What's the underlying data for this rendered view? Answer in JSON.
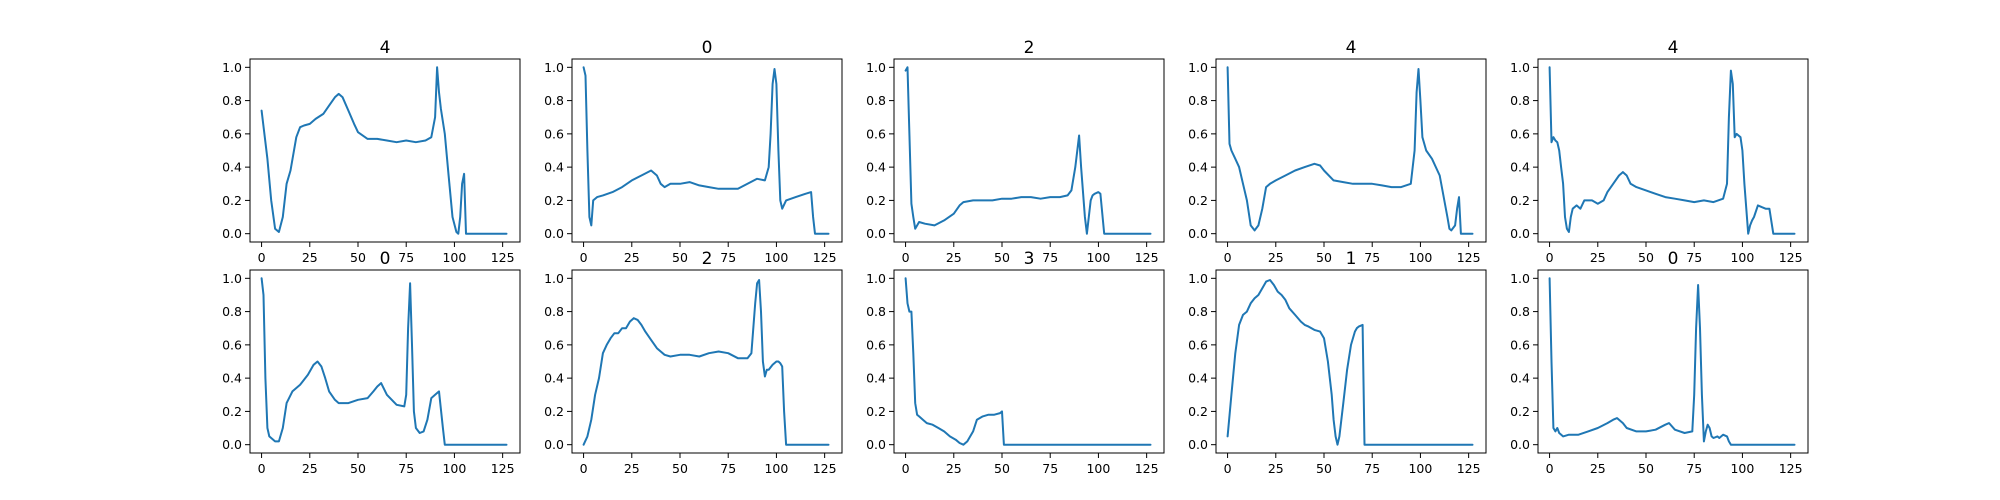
{
  "figure": {
    "rows": 2,
    "cols": 5
  },
  "colors": {
    "series": "#1f77b4",
    "axes": "#000000",
    "background": "#ffffff"
  },
  "chart_data": [
    {
      "type": "line",
      "title": "4",
      "xlim": [
        -6,
        134
      ],
      "ylim": [
        -0.05,
        1.05
      ],
      "xticks": [
        0,
        25,
        50,
        75,
        100,
        125
      ],
      "xtick_labels": [
        "0",
        "25",
        "50",
        "75",
        "100",
        "125"
      ],
      "yticks": [
        0,
        0.2,
        0.4,
        0.6,
        0.8,
        1.0
      ],
      "ytick_labels": [
        "0.0",
        "0.2",
        "0.4",
        "0.6",
        "0.8",
        "1.0"
      ],
      "x": [
        0,
        3,
        5,
        7,
        9,
        11,
        13,
        15,
        18,
        20,
        22,
        25,
        28,
        32,
        35,
        38,
        40,
        42,
        45,
        48,
        50,
        55,
        60,
        65,
        70,
        75,
        80,
        85,
        88,
        90,
        91,
        92,
        93,
        95,
        97,
        99,
        101,
        102,
        103,
        104,
        105,
        106,
        107,
        108,
        110,
        115,
        120,
        125,
        127
      ],
      "y": [
        0.74,
        0.45,
        0.2,
        0.03,
        0.01,
        0.1,
        0.3,
        0.38,
        0.58,
        0.64,
        0.65,
        0.66,
        0.69,
        0.72,
        0.77,
        0.82,
        0.84,
        0.82,
        0.74,
        0.66,
        0.61,
        0.57,
        0.57,
        0.56,
        0.55,
        0.56,
        0.55,
        0.56,
        0.58,
        0.7,
        1.0,
        0.85,
        0.75,
        0.6,
        0.35,
        0.1,
        0.01,
        0.0,
        0.1,
        0.3,
        0.36,
        0.0,
        0.0,
        0.0,
        0.0,
        0.0,
        0.0,
        0.0,
        0.0
      ]
    },
    {
      "type": "line",
      "title": "0",
      "xlim": [
        -6,
        134
      ],
      "ylim": [
        -0.05,
        1.05
      ],
      "xticks": [
        0,
        25,
        50,
        75,
        100,
        125
      ],
      "xtick_labels": [
        "0",
        "25",
        "50",
        "75",
        "100",
        "125"
      ],
      "yticks": [
        0,
        0.2,
        0.4,
        0.6,
        0.8,
        1.0
      ],
      "ytick_labels": [
        "0.0",
        "0.2",
        "0.4",
        "0.6",
        "0.8",
        "1.0"
      ],
      "x": [
        0,
        1,
        2,
        3,
        4,
        5,
        7,
        10,
        15,
        20,
        25,
        30,
        35,
        38,
        40,
        42,
        45,
        50,
        55,
        60,
        65,
        70,
        75,
        80,
        85,
        90,
        94,
        96,
        97,
        98,
        99,
        100,
        101,
        102,
        103,
        105,
        110,
        115,
        118,
        119,
        120,
        125,
        127
      ],
      "y": [
        1.0,
        0.95,
        0.5,
        0.1,
        0.05,
        0.2,
        0.22,
        0.23,
        0.25,
        0.28,
        0.32,
        0.35,
        0.38,
        0.35,
        0.3,
        0.28,
        0.3,
        0.3,
        0.31,
        0.29,
        0.28,
        0.27,
        0.27,
        0.27,
        0.3,
        0.33,
        0.32,
        0.4,
        0.6,
        0.9,
        0.99,
        0.9,
        0.5,
        0.2,
        0.15,
        0.2,
        0.22,
        0.24,
        0.25,
        0.1,
        0.0,
        0.0,
        0.0
      ]
    },
    {
      "type": "line",
      "title": "2",
      "xlim": [
        -6,
        134
      ],
      "ylim": [
        -0.05,
        1.05
      ],
      "xticks": [
        0,
        25,
        50,
        75,
        100,
        125
      ],
      "xtick_labels": [
        "0",
        "25",
        "50",
        "75",
        "100",
        "125"
      ],
      "yticks": [
        0,
        0.2,
        0.4,
        0.6,
        0.8,
        1.0
      ],
      "ytick_labels": [
        "0.0",
        "0.2",
        "0.4",
        "0.6",
        "0.8",
        "1.0"
      ],
      "x": [
        0,
        1,
        2,
        3,
        4,
        5,
        7,
        10,
        15,
        20,
        25,
        28,
        30,
        35,
        40,
        45,
        50,
        55,
        60,
        65,
        70,
        75,
        80,
        84,
        86,
        88,
        90,
        91,
        93,
        94,
        95,
        96,
        97,
        98,
        100,
        101,
        103,
        105,
        110,
        125,
        127
      ],
      "y": [
        0.98,
        1.0,
        0.6,
        0.18,
        0.1,
        0.03,
        0.07,
        0.06,
        0.05,
        0.08,
        0.12,
        0.17,
        0.19,
        0.2,
        0.2,
        0.2,
        0.21,
        0.21,
        0.22,
        0.22,
        0.21,
        0.22,
        0.22,
        0.23,
        0.26,
        0.4,
        0.59,
        0.4,
        0.1,
        0.0,
        0.1,
        0.2,
        0.23,
        0.24,
        0.25,
        0.24,
        0.0,
        0.0,
        0.0,
        0.0,
        0.0
      ]
    },
    {
      "type": "line",
      "title": "4",
      "xlim": [
        -6,
        134
      ],
      "ylim": [
        -0.05,
        1.05
      ],
      "xticks": [
        0,
        25,
        50,
        75,
        100,
        125
      ],
      "xtick_labels": [
        "0",
        "25",
        "50",
        "75",
        "100",
        "125"
      ],
      "yticks": [
        0,
        0.2,
        0.4,
        0.6,
        0.8,
        1.0
      ],
      "ytick_labels": [
        "0.0",
        "0.2",
        "0.4",
        "0.6",
        "0.8",
        "1.0"
      ],
      "x": [
        0,
        1,
        2,
        4,
        6,
        8,
        10,
        12,
        14,
        16,
        18,
        20,
        22,
        25,
        30,
        35,
        40,
        45,
        48,
        50,
        55,
        60,
        65,
        70,
        75,
        80,
        85,
        90,
        95,
        97,
        98,
        99,
        100,
        101,
        103,
        106,
        110,
        114,
        115,
        116,
        118,
        119,
        120,
        121,
        125,
        127
      ],
      "y": [
        1.0,
        0.54,
        0.5,
        0.45,
        0.4,
        0.3,
        0.2,
        0.05,
        0.02,
        0.05,
        0.15,
        0.28,
        0.3,
        0.32,
        0.35,
        0.38,
        0.4,
        0.42,
        0.41,
        0.38,
        0.32,
        0.31,
        0.3,
        0.3,
        0.3,
        0.29,
        0.28,
        0.28,
        0.3,
        0.5,
        0.85,
        0.99,
        0.8,
        0.58,
        0.5,
        0.45,
        0.35,
        0.1,
        0.03,
        0.02,
        0.05,
        0.15,
        0.22,
        0.0,
        0.0,
        0.0
      ]
    },
    {
      "type": "line",
      "title": "4",
      "xlim": [
        -6,
        134
      ],
      "ylim": [
        -0.05,
        1.05
      ],
      "xticks": [
        0,
        25,
        50,
        75,
        100,
        125
      ],
      "xtick_labels": [
        "0",
        "25",
        "50",
        "75",
        "100",
        "125"
      ],
      "yticks": [
        0,
        0.2,
        0.4,
        0.6,
        0.8,
        1.0
      ],
      "ytick_labels": [
        "0.0",
        "0.2",
        "0.4",
        "0.6",
        "0.8",
        "1.0"
      ],
      "x": [
        0,
        1,
        2,
        3,
        4,
        5,
        6,
        7,
        8,
        9,
        10,
        11,
        12,
        14,
        16,
        18,
        20,
        22,
        25,
        28,
        30,
        33,
        36,
        38,
        40,
        42,
        45,
        50,
        55,
        60,
        65,
        70,
        75,
        80,
        85,
        90,
        92,
        93,
        94,
        95,
        96,
        97,
        99,
        100,
        101,
        103,
        104,
        105,
        106,
        108,
        110,
        112,
        114,
        116,
        125,
        127
      ],
      "y": [
        1.0,
        0.55,
        0.58,
        0.56,
        0.55,
        0.5,
        0.4,
        0.3,
        0.1,
        0.03,
        0.01,
        0.1,
        0.15,
        0.17,
        0.15,
        0.2,
        0.2,
        0.2,
        0.18,
        0.2,
        0.25,
        0.3,
        0.35,
        0.37,
        0.35,
        0.3,
        0.28,
        0.26,
        0.24,
        0.22,
        0.21,
        0.2,
        0.19,
        0.2,
        0.19,
        0.21,
        0.3,
        0.7,
        0.98,
        0.9,
        0.58,
        0.6,
        0.58,
        0.5,
        0.3,
        0.0,
        0.05,
        0.08,
        0.1,
        0.17,
        0.16,
        0.15,
        0.15,
        0.0,
        0.0,
        0.0
      ]
    },
    {
      "type": "line",
      "title": "0",
      "xlim": [
        -6,
        134
      ],
      "ylim": [
        -0.05,
        1.05
      ],
      "xticks": [
        0,
        25,
        50,
        75,
        100,
        125
      ],
      "xtick_labels": [
        "0",
        "25",
        "50",
        "75",
        "100",
        "125"
      ],
      "yticks": [
        0,
        0.2,
        0.4,
        0.6,
        0.8,
        1.0
      ],
      "ytick_labels": [
        "0.0",
        "0.2",
        "0.4",
        "0.6",
        "0.8",
        "1.0"
      ],
      "x": [
        0,
        1,
        2,
        3,
        4,
        5,
        7,
        9,
        11,
        13,
        16,
        20,
        24,
        27,
        29,
        31,
        33,
        35,
        38,
        40,
        45,
        50,
        55,
        58,
        60,
        62,
        65,
        70,
        74,
        75,
        76,
        77,
        78,
        79,
        80,
        82,
        84,
        86,
        88,
        90,
        92,
        94,
        95,
        96,
        100,
        125,
        127
      ],
      "y": [
        1.0,
        0.9,
        0.4,
        0.1,
        0.05,
        0.04,
        0.02,
        0.02,
        0.1,
        0.25,
        0.32,
        0.36,
        0.42,
        0.48,
        0.5,
        0.47,
        0.4,
        0.32,
        0.27,
        0.25,
        0.25,
        0.27,
        0.28,
        0.32,
        0.35,
        0.37,
        0.3,
        0.24,
        0.23,
        0.3,
        0.7,
        0.97,
        0.6,
        0.2,
        0.1,
        0.07,
        0.08,
        0.15,
        0.28,
        0.3,
        0.32,
        0.1,
        0.0,
        0.0,
        0.0,
        0.0,
        0.0
      ]
    },
    {
      "type": "line",
      "title": "2",
      "xlim": [
        -6,
        134
      ],
      "ylim": [
        -0.05,
        1.05
      ],
      "xticks": [
        0,
        25,
        50,
        75,
        100,
        125
      ],
      "xtick_labels": [
        "0",
        "25",
        "50",
        "75",
        "100",
        "125"
      ],
      "yticks": [
        0,
        0.2,
        0.4,
        0.6,
        0.8,
        1.0
      ],
      "ytick_labels": [
        "0.0",
        "0.2",
        "0.4",
        "0.6",
        "0.8",
        "1.0"
      ],
      "x": [
        0,
        2,
        4,
        6,
        8,
        10,
        12,
        14,
        16,
        18,
        20,
        22,
        24,
        26,
        28,
        30,
        32,
        35,
        38,
        40,
        42,
        45,
        50,
        55,
        60,
        65,
        70,
        75,
        80,
        85,
        87,
        88,
        89,
        90,
        91,
        92,
        93,
        94,
        95,
        96,
        98,
        100,
        101,
        102,
        103,
        104,
        105,
        110,
        125,
        127
      ],
      "y": [
        0.0,
        0.05,
        0.15,
        0.3,
        0.4,
        0.55,
        0.6,
        0.64,
        0.67,
        0.67,
        0.7,
        0.7,
        0.74,
        0.76,
        0.75,
        0.72,
        0.68,
        0.63,
        0.58,
        0.56,
        0.54,
        0.53,
        0.54,
        0.54,
        0.53,
        0.55,
        0.56,
        0.55,
        0.52,
        0.52,
        0.55,
        0.7,
        0.85,
        0.97,
        0.99,
        0.8,
        0.5,
        0.41,
        0.45,
        0.45,
        0.48,
        0.5,
        0.5,
        0.49,
        0.47,
        0.2,
        0.0,
        0.0,
        0.0,
        0.0
      ]
    },
    {
      "type": "line",
      "title": "3",
      "xlim": [
        -6,
        134
      ],
      "ylim": [
        -0.05,
        1.05
      ],
      "xticks": [
        0,
        25,
        50,
        75,
        100,
        125
      ],
      "xtick_labels": [
        "0",
        "25",
        "50",
        "75",
        "100",
        "125"
      ],
      "yticks": [
        0,
        0.2,
        0.4,
        0.6,
        0.8,
        1.0
      ],
      "ytick_labels": [
        "0.0",
        "0.2",
        "0.4",
        "0.6",
        "0.8",
        "1.0"
      ],
      "x": [
        0,
        1,
        2,
        3,
        4,
        5,
        6,
        7,
        9,
        11,
        14,
        17,
        20,
        23,
        26,
        28,
        30,
        32,
        35,
        37,
        40,
        43,
        46,
        49,
        50,
        51,
        55,
        75,
        100,
        125,
        127
      ],
      "y": [
        1.0,
        0.85,
        0.8,
        0.8,
        0.55,
        0.25,
        0.18,
        0.17,
        0.15,
        0.13,
        0.12,
        0.1,
        0.08,
        0.05,
        0.03,
        0.01,
        0.0,
        0.02,
        0.08,
        0.15,
        0.17,
        0.18,
        0.18,
        0.19,
        0.2,
        0.0,
        0.0,
        0.0,
        0.0,
        0.0,
        0.0
      ]
    },
    {
      "type": "line",
      "title": "1",
      "xlim": [
        -6,
        134
      ],
      "ylim": [
        -0.05,
        1.05
      ],
      "xticks": [
        0,
        25,
        50,
        75,
        100,
        125
      ],
      "xtick_labels": [
        "0",
        "25",
        "50",
        "75",
        "100",
        "125"
      ],
      "yticks": [
        0,
        0.2,
        0.4,
        0.6,
        0.8,
        1.0
      ],
      "ytick_labels": [
        "0.0",
        "0.2",
        "0.4",
        "0.6",
        "0.8",
        "1.0"
      ],
      "x": [
        0,
        2,
        4,
        6,
        8,
        10,
        12,
        14,
        16,
        18,
        20,
        22,
        24,
        26,
        28,
        30,
        32,
        35,
        38,
        40,
        42,
        45,
        48,
        50,
        52,
        54,
        55,
        56,
        57,
        58,
        60,
        62,
        64,
        66,
        67,
        68,
        70,
        71,
        72,
        75,
        100,
        125,
        127
      ],
      "y": [
        0.05,
        0.3,
        0.55,
        0.72,
        0.78,
        0.8,
        0.85,
        0.88,
        0.9,
        0.94,
        0.98,
        0.99,
        0.96,
        0.92,
        0.9,
        0.87,
        0.82,
        0.78,
        0.74,
        0.72,
        0.71,
        0.69,
        0.68,
        0.64,
        0.5,
        0.3,
        0.15,
        0.05,
        0.0,
        0.05,
        0.25,
        0.45,
        0.6,
        0.68,
        0.7,
        0.71,
        0.72,
        0.0,
        0.0,
        0.0,
        0.0,
        0.0,
        0.0
      ]
    },
    {
      "type": "line",
      "title": "0",
      "xlim": [
        -6,
        134
      ],
      "ylim": [
        -0.05,
        1.05
      ],
      "xticks": [
        0,
        25,
        50,
        75,
        100,
        125
      ],
      "xtick_labels": [
        "0",
        "25",
        "50",
        "75",
        "100",
        "125"
      ],
      "yticks": [
        0,
        0.2,
        0.4,
        0.6,
        0.8,
        1.0
      ],
      "ytick_labels": [
        "0.0",
        "0.2",
        "0.4",
        "0.6",
        "0.8",
        "1.0"
      ],
      "x": [
        0,
        1,
        2,
        3,
        4,
        5,
        7,
        10,
        15,
        20,
        25,
        30,
        33,
        35,
        38,
        40,
        45,
        50,
        55,
        60,
        62,
        65,
        70,
        74,
        75,
        76,
        77,
        78,
        79,
        80,
        81,
        82,
        83,
        84,
        85,
        87,
        88,
        90,
        92,
        93,
        94,
        100,
        125,
        127
      ],
      "y": [
        1.0,
        0.5,
        0.1,
        0.08,
        0.1,
        0.07,
        0.05,
        0.06,
        0.06,
        0.08,
        0.1,
        0.13,
        0.15,
        0.16,
        0.13,
        0.1,
        0.08,
        0.08,
        0.09,
        0.12,
        0.13,
        0.09,
        0.07,
        0.08,
        0.3,
        0.7,
        0.96,
        0.7,
        0.3,
        0.02,
        0.08,
        0.12,
        0.1,
        0.05,
        0.04,
        0.05,
        0.04,
        0.06,
        0.05,
        0.02,
        0.0,
        0.0,
        0.0,
        0.0
      ]
    }
  ]
}
